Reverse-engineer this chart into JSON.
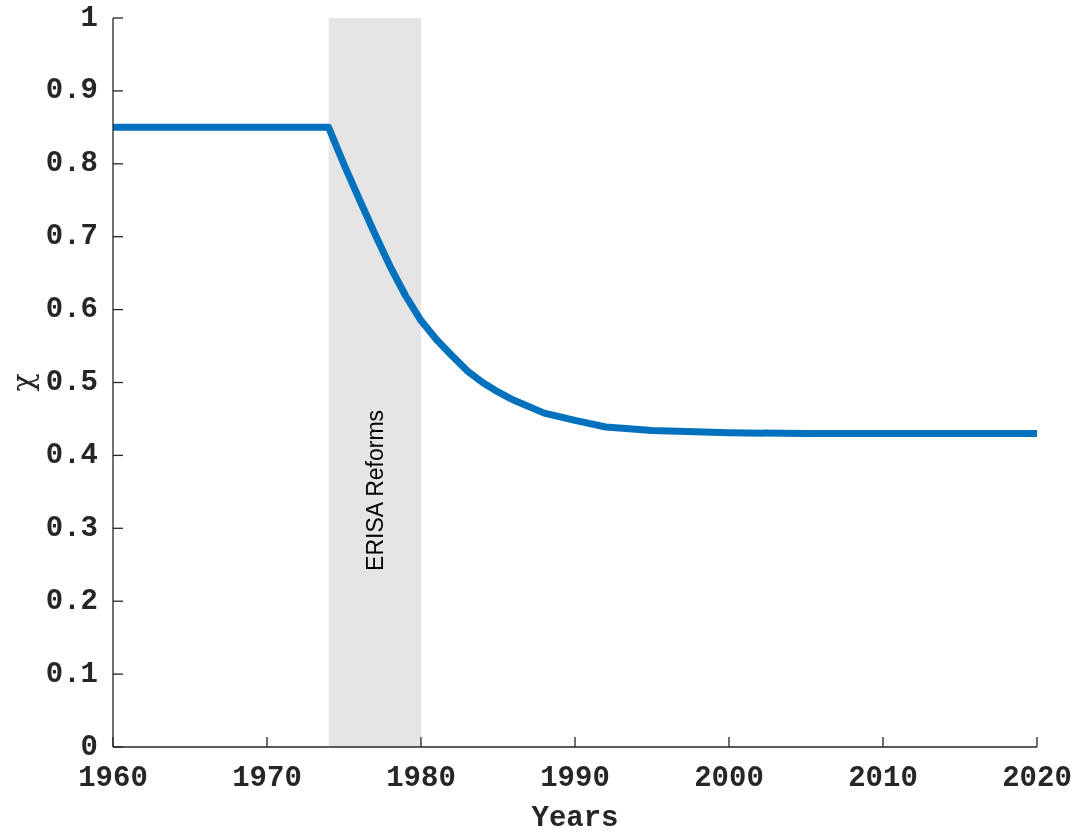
{
  "chart_data": {
    "type": "line",
    "xlabel": "Years",
    "ylabel": "χ",
    "x": [
      1960,
      1974,
      1975,
      1976,
      1977,
      1978,
      1979,
      1980,
      1981,
      1982,
      1983,
      1984,
      1985,
      1986,
      1988,
      1990,
      1992,
      1995,
      2000,
      2005,
      2010,
      2020
    ],
    "series": [
      {
        "color": "#0072bd",
        "values": [
          0.85,
          0.85,
          0.799,
          0.751,
          0.704,
          0.659,
          0.619,
          0.585,
          0.559,
          0.537,
          0.516,
          0.5,
          0.487,
          0.476,
          0.458,
          0.448,
          0.439,
          0.434,
          0.431,
          0.43,
          0.43,
          0.43
        ]
      }
    ],
    "xlim": [
      1960,
      2020
    ],
    "ylim": [
      0,
      1
    ],
    "xticks": [
      1960,
      1970,
      1980,
      1990,
      2000,
      2010,
      2020
    ],
    "yticks": [
      0,
      0.1,
      0.2,
      0.3,
      0.4,
      0.5,
      0.6,
      0.7,
      0.8,
      0.9,
      1
    ],
    "line_style": "solid",
    "bands": [
      {
        "axis": "x",
        "from": 1974,
        "to": 1980,
        "label": "ERISA Reforms",
        "color": "#e5e5e5"
      }
    ]
  }
}
